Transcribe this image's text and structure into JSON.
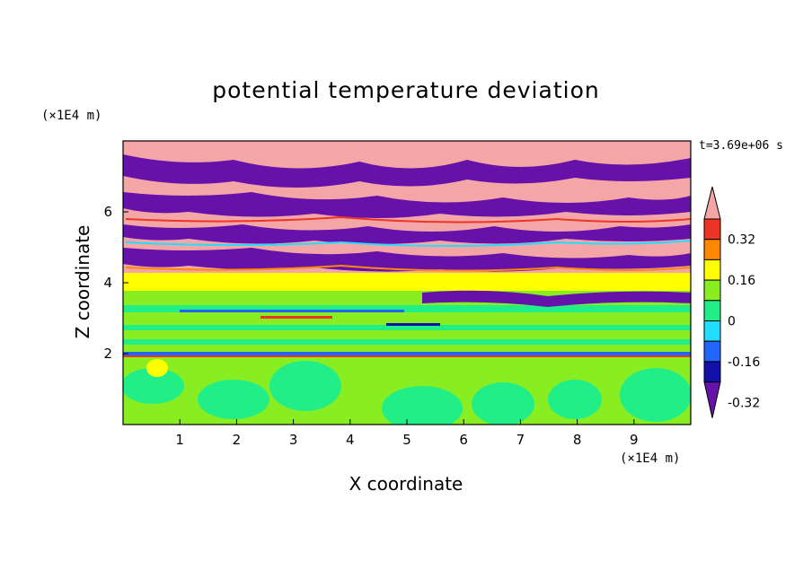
{
  "chart_data": {
    "type": "heatmap",
    "title": "potential temperature deviation",
    "xlabel": "X coordinate",
    "ylabel": "Z coordinate",
    "x_unit": "(×1E4 m)",
    "y_unit": "(×1E4 m)",
    "time_label": "t=3.69e+06 s",
    "xlim": [
      0,
      10
    ],
    "ylim": [
      0,
      8
    ],
    "x_ticks": [
      "1",
      "2",
      "3",
      "4",
      "5",
      "6",
      "7",
      "8",
      "9"
    ],
    "y_ticks": [
      "2",
      "4",
      "6"
    ],
    "colorbar": {
      "labels": [
        "0.32",
        "0.16",
        "0",
        "-0.16",
        "-0.32"
      ],
      "colors": [
        "#f4a6a6",
        "#ee3424",
        "#ff8800",
        "#ffff00",
        "#88ee22",
        "#22ee88",
        "#22ddff",
        "#2266ff",
        "#1111aa",
        "#6611aa"
      ]
    },
    "layers": [
      {
        "z_range": [
          0,
          2
        ],
        "dominant": "green/light-green convection cells"
      },
      {
        "z_range": [
          2,
          3.8
        ],
        "dominant": "light green with thin blue/red streaks"
      },
      {
        "z_range": [
          3.8,
          4.2
        ],
        "dominant": "yellow band"
      },
      {
        "z_range": [
          4.2,
          8
        ],
        "dominant": "alternating pink and purple layers"
      }
    ]
  }
}
